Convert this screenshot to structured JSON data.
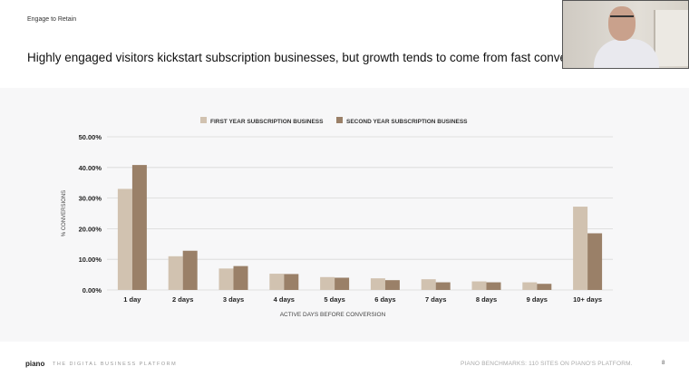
{
  "slide": {
    "section_label": "Engage to Retain",
    "headline": "Highly engaged visitors kickstart subscription businesses, but growth tends to come from fast conve",
    "footer_logo": "piano",
    "footer_tagline": "THE DIGITAL BUSINESS PLATFORM",
    "footer_source": "PIANO BENCHMARKS: 110 SITES ON PIANO'S PLATFORM.",
    "page_number": "8"
  },
  "colors": {
    "first_year": "#d1c2b0",
    "second_year": "#9a8068",
    "grid": "#d8d8d8",
    "text": "#222222"
  },
  "chart_data": {
    "type": "bar",
    "title": "",
    "categories": [
      "1 day",
      "2 days",
      "3 days",
      "4 days",
      "5 days",
      "6 days",
      "7 days",
      "8 days",
      "9 days",
      "10+ days"
    ],
    "series": [
      {
        "name": "FIRST YEAR SUBSCRIPTION BUSINESS",
        "values": [
          33.0,
          11.0,
          7.0,
          5.3,
          4.2,
          3.8,
          3.5,
          2.8,
          2.5,
          27.2
        ]
      },
      {
        "name": "SECOND YEAR SUBSCRIPTION BUSINESS",
        "values": [
          40.8,
          12.8,
          7.8,
          5.2,
          4.0,
          3.2,
          2.5,
          2.5,
          2.0,
          18.5
        ]
      }
    ],
    "xlabel": "ACTIVE DAYS BEFORE CONVERSION",
    "ylabel": "% CONVERSIONS",
    "ylim": [
      0,
      50
    ],
    "yticks": [
      "0.00%",
      "10.00%",
      "20.00%",
      "30.00%",
      "40.00%",
      "50.00%"
    ],
    "grid": true,
    "legend_position": "top-center"
  }
}
